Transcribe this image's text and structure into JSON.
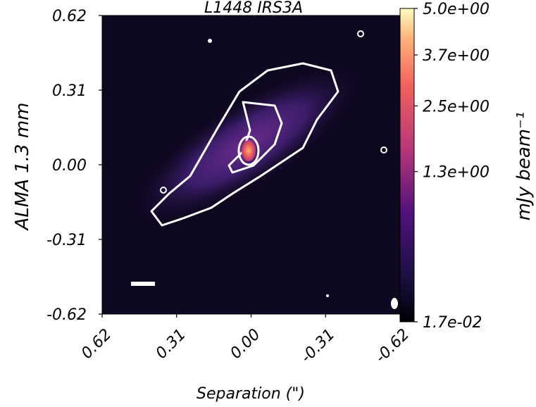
{
  "chart_data": {
    "type": "image",
    "title": "L1448 IRS3A",
    "x_label": "Separation (\")",
    "y_label": "ALMA 1.3 mm",
    "xlim": [
      0.62,
      -0.62
    ],
    "ylim": [
      -0.62,
      0.62
    ],
    "xticks": [
      0.62,
      0.31,
      {
        "value": 0,
        "label": "0.00"
      },
      -0.31,
      -0.62
    ],
    "yticks": [
      0.62,
      0.31,
      {
        "value": 0,
        "label": "0.00"
      },
      -0.31,
      -0.62
    ],
    "colorbar": {
      "label": "mJy beam⁻¹",
      "scale": "sqrt",
      "colormap": "magma",
      "lim": [
        0.017,
        5.0
      ],
      "ticks": [
        {
          "value": 5.0,
          "label": "5.0e+00"
        },
        {
          "value": 3.7,
          "label": "3.7e+00"
        },
        {
          "value": 2.5,
          "label": "2.5e+00"
        },
        {
          "value": 1.3,
          "label": "1.3e+00"
        },
        {
          "value": 0.017,
          "label": "1.7e-02"
        }
      ]
    }
  }
}
